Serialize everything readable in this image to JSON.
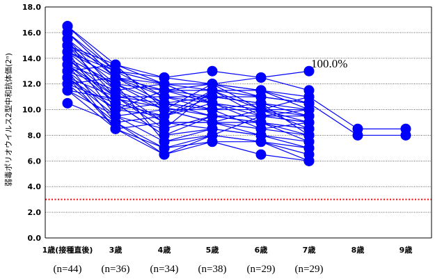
{
  "chart_data": {
    "type": "line",
    "title": "",
    "ylabel": "弱毒ポリオウイルス2型中和抗体価(2ⁿ)",
    "xlabel": "",
    "ylim": [
      0,
      18
    ],
    "yticks": [
      "0.0",
      "2.0",
      "4.0",
      "6.0",
      "8.0",
      "10.0",
      "12.0",
      "14.0",
      "16.0",
      "18.0"
    ],
    "categories": [
      "1歳(接種直後)",
      "3歳",
      "4歳",
      "5歳",
      "6歳",
      "7歳",
      "8歳",
      "9歳"
    ],
    "sample_sizes": [
      "(n=44)",
      "(n=36)",
      "(n=34)",
      "(n=38)",
      "(n=29)",
      "(n=29)"
    ],
    "grid": true,
    "series_color": "#0000ff",
    "reference_line": {
      "y": 3.0,
      "color": "#ff0000",
      "style": "dotted"
    },
    "annotation": {
      "text": "100.0%",
      "category_index": 5,
      "y": 13.0
    },
    "series": [
      {
        "values": [
          16.5,
          13.5,
          12.5,
          13.0,
          12.5,
          13.0,
          null,
          null
        ]
      },
      {
        "values": [
          16.5,
          13.0,
          12.0,
          12.0,
          12.5,
          11.5,
          null,
          null
        ]
      },
      {
        "values": [
          16.0,
          13.0,
          12.5,
          12.0,
          11.5,
          11.0,
          8.5,
          8.5
        ]
      },
      {
        "values": [
          16.0,
          12.5,
          12.0,
          11.5,
          11.0,
          10.5,
          8.0,
          8.0
        ]
      },
      {
        "values": [
          15.5,
          12.5,
          11.5,
          12.0,
          11.0,
          10.5,
          null,
          null
        ]
      },
      {
        "values": [
          15.0,
          13.0,
          11.0,
          11.0,
          10.5,
          10.0,
          null,
          null
        ]
      },
      {
        "values": [
          15.0,
          12.0,
          11.5,
          11.5,
          10.0,
          10.0,
          null,
          null
        ]
      },
      {
        "values": [
          14.5,
          12.5,
          10.5,
          11.0,
          10.5,
          9.5,
          null,
          null
        ]
      },
      {
        "values": [
          14.5,
          11.5,
          12.0,
          10.5,
          9.5,
          9.0,
          null,
          null
        ]
      },
      {
        "values": [
          14.0,
          12.0,
          10.0,
          10.0,
          10.0,
          11.0,
          null,
          null
        ]
      },
      {
        "values": [
          14.0,
          11.0,
          11.0,
          10.5,
          9.0,
          8.5,
          null,
          null
        ]
      },
      {
        "values": [
          13.5,
          12.0,
          10.5,
          9.5,
          9.5,
          9.0,
          null,
          null
        ]
      },
      {
        "values": [
          13.5,
          10.5,
          9.5,
          11.0,
          11.0,
          10.5,
          null,
          null
        ]
      },
      {
        "values": [
          13.0,
          11.5,
          9.0,
          9.0,
          8.5,
          8.0,
          null,
          null
        ]
      },
      {
        "values": [
          13.0,
          10.0,
          10.5,
          10.0,
          10.5,
          9.5,
          null,
          null
        ]
      },
      {
        "values": [
          12.5,
          11.0,
          8.5,
          9.5,
          9.0,
          7.5,
          null,
          null
        ]
      },
      {
        "values": [
          12.5,
          9.5,
          10.0,
          12.0,
          10.0,
          10.0,
          null,
          null
        ]
      },
      {
        "values": [
          12.0,
          10.5,
          8.0,
          8.5,
          8.0,
          7.0,
          null,
          null
        ]
      },
      {
        "values": [
          12.0,
          9.0,
          9.5,
          11.5,
          11.5,
          10.0,
          null,
          null
        ]
      },
      {
        "values": [
          11.5,
          9.5,
          7.5,
          8.0,
          7.5,
          6.5,
          null,
          null
        ]
      },
      {
        "values": [
          11.5,
          8.5,
          7.0,
          7.5,
          6.5,
          6.0,
          null,
          null
        ]
      },
      {
        "values": [
          10.5,
          9.0,
          6.5,
          7.5,
          7.5,
          6.0,
          null,
          null
        ]
      },
      {
        "values": [
          16.0,
          12.5,
          11.5,
          10.5,
          10.0,
          9.0,
          null,
          null
        ]
      },
      {
        "values": [
          15.5,
          11.5,
          10.0,
          9.0,
          9.0,
          8.0,
          null,
          null
        ]
      },
      {
        "values": [
          15.0,
          11.0,
          9.0,
          8.5,
          8.0,
          7.5,
          null,
          null
        ]
      },
      {
        "values": [
          14.0,
          10.5,
          8.0,
          9.5,
          9.0,
          8.5,
          null,
          null
        ]
      },
      {
        "values": [
          13.5,
          9.0,
          7.0,
          8.0,
          7.5,
          7.0,
          null,
          null
        ]
      },
      {
        "values": [
          13.0,
          8.5,
          6.5,
          8.0,
          9.5,
          9.5,
          null,
          null
        ]
      },
      {
        "values": [
          12.5,
          10.0,
          11.5,
          11.0,
          10.5,
          8.0,
          null,
          null
        ]
      },
      {
        "values": [
          14.5,
          13.0,
          12.0,
          12.0,
          11.5,
          10.5,
          null,
          null
        ]
      },
      {
        "values": [
          12.0,
          12.5,
          11.0,
          10.0,
          8.5,
          9.0,
          null,
          null
        ]
      },
      {
        "values": [
          13.0,
          13.5,
          10.0,
          9.0,
          10.0,
          9.5,
          null,
          null
        ]
      },
      {
        "values": [
          15.5,
          10.0,
          9.5,
          10.5,
          10.0,
          8.5,
          null,
          null
        ]
      },
      {
        "values": [
          14.5,
          9.5,
          8.5,
          11.5,
          9.5,
          10.0,
          null,
          null
        ]
      },
      {
        "values": [
          12.5,
          8.5,
          9.0,
          9.0,
          8.0,
          null,
          null,
          null
        ]
      },
      {
        "values": [
          13.5,
          11.0,
          10.5,
          10.0,
          null,
          null,
          null,
          null
        ]
      },
      {
        "values": [
          14.0,
          12.0,
          7.5,
          8.5,
          null,
          null,
          null,
          null
        ]
      },
      {
        "values": [
          11.5,
          null,
          null,
          9.5,
          null,
          null,
          null,
          null
        ]
      },
      {
        "values": [
          15.0,
          null,
          null,
          10.5,
          null,
          null,
          null,
          null
        ]
      },
      {
        "values": [
          16.5,
          null,
          null,
          null,
          null,
          null,
          null,
          null
        ]
      },
      {
        "values": [
          14.0,
          null,
          null,
          null,
          null,
          null,
          null,
          null
        ]
      },
      {
        "values": [
          12.0,
          null,
          null,
          null,
          null,
          null,
          null,
          null
        ]
      },
      {
        "values": [
          13.0,
          null,
          null,
          null,
          null,
          null,
          null,
          null
        ]
      },
      {
        "values": [
          15.5,
          null,
          null,
          null,
          null,
          null,
          null,
          null
        ]
      }
    ]
  }
}
